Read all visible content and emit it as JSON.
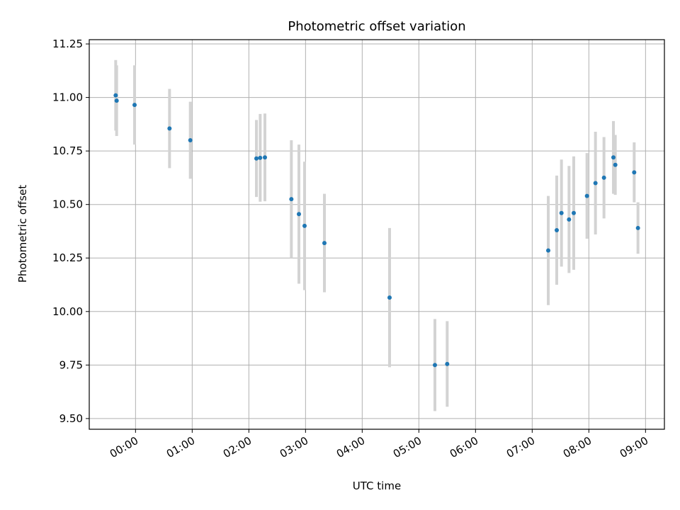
{
  "chart_data": {
    "type": "scatter",
    "title": "Photometric offset variation",
    "xlabel": "UTC time",
    "ylabel": "Photometric offset",
    "x_tick_labels": [
      "00:00",
      "01:00",
      "02:00",
      "03:00",
      "04:00",
      "05:00",
      "06:00",
      "07:00",
      "08:00",
      "09:00"
    ],
    "x_tick_values": [
      "00:00",
      "01:00",
      "02:00",
      "03:00",
      "04:00",
      "05:00",
      "06:00",
      "07:00",
      "08:00",
      "09:00"
    ],
    "y_tick_labels": [
      "9.50",
      "9.75",
      "10.00",
      "10.25",
      "10.50",
      "10.75",
      "11.00",
      "11.25"
    ],
    "y_tick_values": [
      9.5,
      9.75,
      10.0,
      10.25,
      10.5,
      10.75,
      11.0,
      11.25
    ],
    "xlim": [
      "-00:49",
      "09:20"
    ],
    "ylim": [
      9.45,
      11.27
    ],
    "grid": true,
    "marker_color": "#1f77b4",
    "errorbar_color": "#d3d3d3",
    "points": [
      {
        "x": "-00:21",
        "y": 11.01,
        "err": 0.165
      },
      {
        "x": "-00:20",
        "y": 10.985,
        "err": 0.165
      },
      {
        "x": "-00:01",
        "y": 10.965,
        "err": 0.185
      },
      {
        "x": "00:36",
        "y": 10.855,
        "err": 0.185
      },
      {
        "x": "00:58",
        "y": 10.8,
        "err": 0.18
      },
      {
        "x": "02:08",
        "y": 10.715,
        "err": 0.18
      },
      {
        "x": "02:12",
        "y": 10.718,
        "err": 0.205
      },
      {
        "x": "02:17",
        "y": 10.72,
        "err": 0.205
      },
      {
        "x": "02:45",
        "y": 10.525,
        "err": 0.275
      },
      {
        "x": "02:53",
        "y": 10.455,
        "err": 0.325
      },
      {
        "x": "02:59",
        "y": 10.4,
        "err": 0.3
      },
      {
        "x": "03:20",
        "y": 10.32,
        "err": 0.23
      },
      {
        "x": "04:29",
        "y": 10.065,
        "err": 0.325
      },
      {
        "x": "05:17",
        "y": 9.75,
        "err": 0.215
      },
      {
        "x": "05:30",
        "y": 9.755,
        "err": 0.2
      },
      {
        "x": "07:17",
        "y": 10.285,
        "err": 0.255
      },
      {
        "x": "07:26",
        "y": 10.38,
        "err": 0.255
      },
      {
        "x": "07:31",
        "y": 10.46,
        "err": 0.25
      },
      {
        "x": "07:39",
        "y": 10.43,
        "err": 0.25
      },
      {
        "x": "07:44",
        "y": 10.46,
        "err": 0.265
      },
      {
        "x": "07:58",
        "y": 10.54,
        "err": 0.2
      },
      {
        "x": "08:07",
        "y": 10.6,
        "err": 0.24
      },
      {
        "x": "08:16",
        "y": 10.625,
        "err": 0.19
      },
      {
        "x": "08:26",
        "y": 10.72,
        "err": 0.17
      },
      {
        "x": "08:28",
        "y": 10.685,
        "err": 0.14
      },
      {
        "x": "08:48",
        "y": 10.65,
        "err": 0.14
      },
      {
        "x": "08:52",
        "y": 10.39,
        "err": 0.12
      }
    ]
  }
}
